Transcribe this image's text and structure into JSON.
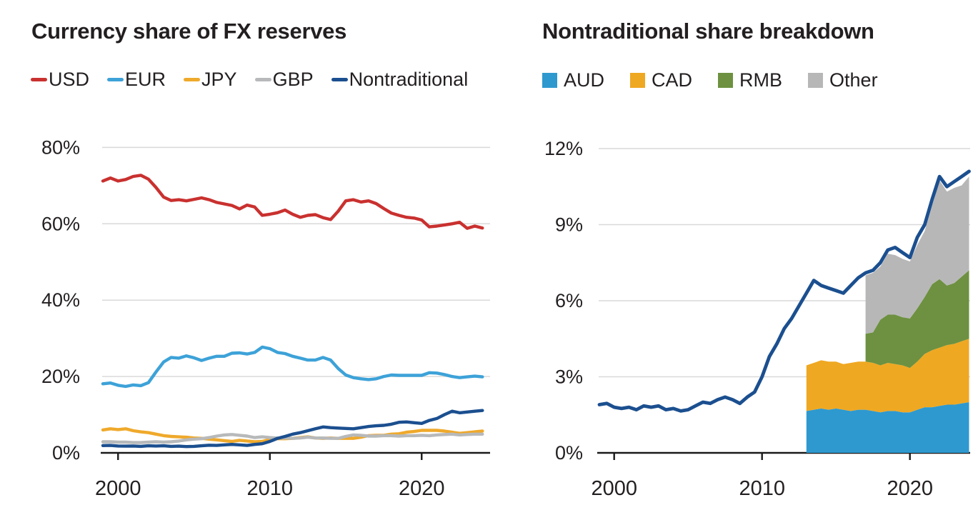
{
  "page": {
    "background": "#ffffff",
    "text_color": "#231f20",
    "gridline_color": "#d9d9d9",
    "axis_color": "#1a1a1a"
  },
  "chart_data": [
    {
      "type": "line",
      "title": "Currency share of FX reserves",
      "x_start": 1999,
      "x_step": 0.5,
      "xlim": [
        1999,
        2024
      ],
      "ylim": [
        0,
        84
      ],
      "grid": "horizontal",
      "legend_position": "top",
      "x_tick_values": [
        2000,
        2010,
        2020
      ],
      "x_tick_labels": [
        "2000",
        "2010",
        "2020"
      ],
      "y_tick_values": [
        0,
        20,
        40,
        60,
        80
      ],
      "y_tick_labels": [
        "0%",
        "20%",
        "40%",
        "60%",
        "80%"
      ],
      "series": [
        {
          "name": "USD",
          "color": "#c9312f",
          "values": [
            71.2,
            72.0,
            71.2,
            71.6,
            72.4,
            72.7,
            71.7,
            69.5,
            67.0,
            66.1,
            66.3,
            66.0,
            66.4,
            66.8,
            66.3,
            65.6,
            65.2,
            64.8,
            63.9,
            64.9,
            64.4,
            62.2,
            62.5,
            62.9,
            63.6,
            62.5,
            61.7,
            62.2,
            62.4,
            61.6,
            61.1,
            63.3,
            66.0,
            66.3,
            65.7,
            66.0,
            65.3,
            64.0,
            62.8,
            62.2,
            61.7,
            61.5,
            61.0,
            59.2,
            59.4,
            59.7,
            60.0,
            60.4,
            58.8,
            59.4,
            58.9
          ]
        },
        {
          "name": "EUR",
          "color": "#3da2d8",
          "values": [
            18.1,
            18.3,
            17.7,
            17.4,
            17.8,
            17.6,
            18.4,
            21.2,
            23.8,
            25.0,
            24.8,
            25.4,
            24.9,
            24.2,
            24.8,
            25.3,
            25.3,
            26.1,
            26.2,
            25.9,
            26.3,
            27.7,
            27.3,
            26.3,
            26.0,
            25.3,
            24.8,
            24.3,
            24.3,
            25.0,
            24.3,
            22.1,
            20.4,
            19.7,
            19.4,
            19.2,
            19.4,
            20.0,
            20.4,
            20.3,
            20.3,
            20.3,
            20.3,
            21.0,
            20.9,
            20.5,
            20.0,
            19.7,
            19.9,
            20.1,
            19.9
          ]
        },
        {
          "name": "JPY",
          "color": "#efa92b",
          "values": [
            6.0,
            6.3,
            6.1,
            6.3,
            5.8,
            5.5,
            5.3,
            4.9,
            4.5,
            4.3,
            4.2,
            4.1,
            3.9,
            3.8,
            3.6,
            3.4,
            3.2,
            3.0,
            3.3,
            3.1,
            2.9,
            3.0,
            3.5,
            3.7,
            3.7,
            3.8,
            4.0,
            4.2,
            3.9,
            3.8,
            3.9,
            3.8,
            3.8,
            3.8,
            4.1,
            4.5,
            4.6,
            4.6,
            4.9,
            5.0,
            5.4,
            5.6,
            5.9,
            5.9,
            5.9,
            5.7,
            5.4,
            5.1,
            5.3,
            5.5,
            5.7
          ]
        },
        {
          "name": "GBP",
          "color": "#b7b9ba",
          "values": [
            2.9,
            2.9,
            2.8,
            2.8,
            2.7,
            2.7,
            2.8,
            2.9,
            2.8,
            2.9,
            3.1,
            3.4,
            3.6,
            3.7,
            4.0,
            4.4,
            4.7,
            4.8,
            4.6,
            4.4,
            4.0,
            4.2,
            4.0,
            3.9,
            3.9,
            3.8,
            3.9,
            4.1,
            3.9,
            3.9,
            3.8,
            3.8,
            4.3,
            4.7,
            4.6,
            4.4,
            4.4,
            4.5,
            4.5,
            4.4,
            4.5,
            4.5,
            4.6,
            4.5,
            4.7,
            4.8,
            4.9,
            4.7,
            4.8,
            4.9,
            4.9
          ]
        },
        {
          "name": "Nontraditional",
          "color": "#1b4f8f",
          "values": [
            1.9,
            1.95,
            1.8,
            1.75,
            1.8,
            1.7,
            1.85,
            1.8,
            1.85,
            1.7,
            1.75,
            1.65,
            1.7,
            1.85,
            2.0,
            1.95,
            2.1,
            2.2,
            2.1,
            1.95,
            2.2,
            2.4,
            3.0,
            3.8,
            4.3,
            4.9,
            5.3,
            5.8,
            6.3,
            6.8,
            6.6,
            6.5,
            6.4,
            6.3,
            6.6,
            6.9,
            7.1,
            7.2,
            7.5,
            8.0,
            8.1,
            7.9,
            7.7,
            8.5,
            9.0,
            10.0,
            10.9,
            10.5,
            10.7,
            10.9,
            11.1
          ]
        }
      ]
    },
    {
      "type": "area",
      "title": "Nontraditional share breakdown",
      "x_start": 1999,
      "x_step": 0.5,
      "xlim": [
        1999,
        2024
      ],
      "ylim": [
        0,
        12.6
      ],
      "grid": "horizontal",
      "legend_position": "top",
      "x_tick_values": [
        2000,
        2010,
        2020
      ],
      "x_tick_labels": [
        "2000",
        "2010",
        "2020"
      ],
      "y_tick_values": [
        0,
        3,
        6,
        9,
        12
      ],
      "y_tick_labels": [
        "0%",
        "3%",
        "6%",
        "9%",
        "12%"
      ],
      "areas_x_start": 2013,
      "areas": [
        {
          "name": "AUD",
          "color": "#2e99cf",
          "values": [
            1.65,
            1.7,
            1.75,
            1.7,
            1.75,
            1.7,
            1.65,
            1.7,
            1.7,
            1.65,
            1.6,
            1.65,
            1.65,
            1.6,
            1.6,
            1.7,
            1.8,
            1.8,
            1.85,
            1.9,
            1.9,
            1.95,
            2.0
          ]
        },
        {
          "name": "CAD",
          "color": "#efa822",
          "values": [
            1.8,
            1.85,
            1.9,
            1.9,
            1.85,
            1.8,
            1.9,
            1.9,
            1.9,
            1.9,
            1.85,
            1.9,
            1.85,
            1.85,
            1.75,
            1.9,
            2.1,
            2.25,
            2.3,
            2.35,
            2.4,
            2.45,
            2.5
          ]
        },
        {
          "name": "RMB",
          "color": "#6d9140",
          "values": [
            null,
            null,
            null,
            null,
            null,
            null,
            null,
            null,
            1.1,
            1.2,
            1.8,
            1.9,
            1.95,
            1.9,
            1.95,
            2.1,
            2.25,
            2.6,
            2.7,
            2.35,
            2.4,
            2.55,
            2.7
          ]
        },
        {
          "name": "Other",
          "color": "#b7b7b7",
          "values": [
            null,
            null,
            null,
            null,
            null,
            null,
            null,
            null,
            2.3,
            2.35,
            2.1,
            2.4,
            2.35,
            2.3,
            2.25,
            2.5,
            2.6,
            3.1,
            3.9,
            3.7,
            3.75,
            3.6,
            3.7
          ]
        }
      ],
      "line": {
        "name": "Nontraditional",
        "color": "#1b4f8f",
        "values": [
          1.9,
          1.95,
          1.8,
          1.75,
          1.8,
          1.7,
          1.85,
          1.8,
          1.85,
          1.7,
          1.75,
          1.65,
          1.7,
          1.85,
          2.0,
          1.95,
          2.1,
          2.2,
          2.1,
          1.95,
          2.2,
          2.4,
          3.0,
          3.8,
          4.3,
          4.9,
          5.3,
          5.8,
          6.3,
          6.8,
          6.6,
          6.5,
          6.4,
          6.3,
          6.6,
          6.9,
          7.1,
          7.2,
          7.5,
          8.0,
          8.1,
          7.9,
          7.7,
          8.5,
          9.0,
          10.0,
          10.9,
          10.5,
          10.7,
          10.9,
          11.1
        ]
      }
    }
  ]
}
